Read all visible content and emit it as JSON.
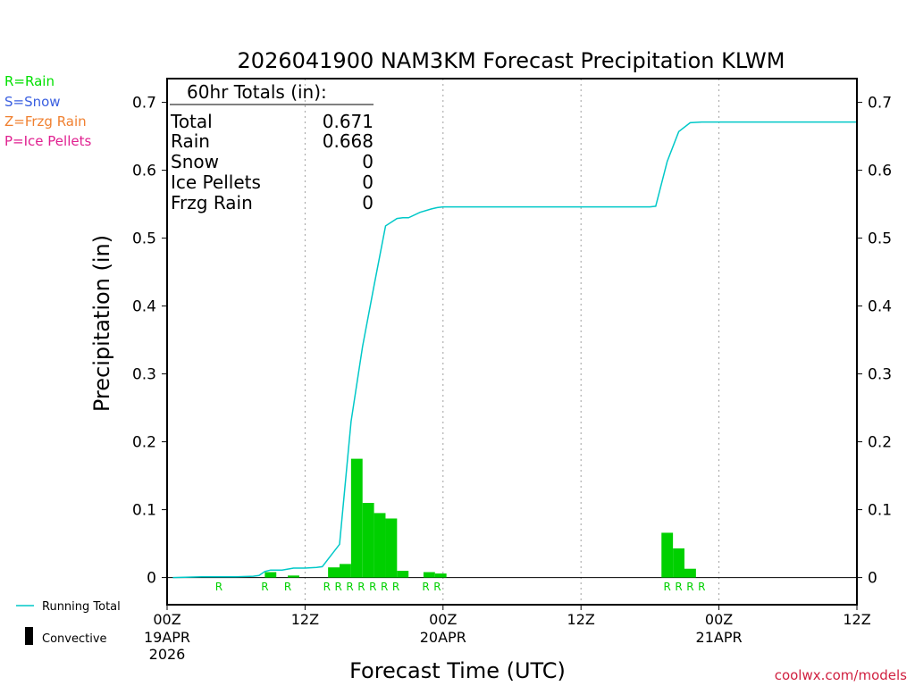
{
  "chart_data": {
    "type": "bar",
    "title": "2026041900 NAM3KM Forecast Precipitation KLWM",
    "xlabel": "Forecast Time (UTC)",
    "ylabel": "Precipitation (in)",
    "ylim": [
      -0.04,
      0.735
    ],
    "xlim_hours": [
      0,
      60
    ],
    "yticks": [
      {
        "v": 0.0,
        "label": "0"
      },
      {
        "v": 0.1,
        "label": "0.1"
      },
      {
        "v": 0.2,
        "label": "0.2"
      },
      {
        "v": 0.3,
        "label": "0.3"
      },
      {
        "v": 0.4,
        "label": "0.4"
      },
      {
        "v": 0.5,
        "label": "0.5"
      },
      {
        "v": 0.6,
        "label": "0.6"
      },
      {
        "v": 0.7,
        "label": "0.7"
      }
    ],
    "xticks": [
      {
        "h": 0,
        "label": "00Z",
        "sub": [
          "19APR",
          "2026"
        ]
      },
      {
        "h": 12,
        "label": "12Z",
        "sub": []
      },
      {
        "h": 24,
        "label": "00Z",
        "sub": [
          "20APR"
        ]
      },
      {
        "h": 36,
        "label": "12Z",
        "sub": []
      },
      {
        "h": 48,
        "label": "00Z",
        "sub": [
          "21APR"
        ]
      },
      {
        "h": 60,
        "label": "12Z",
        "sub": []
      }
    ],
    "gridlines_hours": [
      12,
      24,
      36,
      48
    ],
    "totals_box": {
      "heading": "60hr Totals (in):",
      "rows": [
        {
          "label": "Total",
          "value": "0.671"
        },
        {
          "label": "Rain",
          "value": "0.668"
        },
        {
          "label": "Snow",
          "value": "0"
        },
        {
          "label": "Ice Pellets",
          "value": "0"
        },
        {
          "label": "Frzg Rain",
          "value": "0"
        }
      ]
    },
    "legend_types": [
      {
        "text": "R=Rain",
        "color": "#00e000"
      },
      {
        "text": "S=Snow",
        "color": "#3a5fe0"
      },
      {
        "text": "Z=Frzg Rain",
        "color": "#f08030"
      },
      {
        "text": "P=Ice Pellets",
        "color": "#e02090"
      }
    ],
    "legend_bottom": [
      {
        "text": "Running Total",
        "kind": "line",
        "color": "#00c8c8"
      },
      {
        "text": "Convective",
        "kind": "block",
        "color": "#000000"
      }
    ],
    "bars": [
      {
        "start": 8.5,
        "end": 9.5,
        "value": 0.008,
        "type": "R"
      },
      {
        "start": 10.5,
        "end": 11.5,
        "value": 0.003,
        "type": "R"
      },
      {
        "start": 14.0,
        "end": 15.0,
        "value": 0.015,
        "type": "R"
      },
      {
        "start": 15.0,
        "end": 16.0,
        "value": 0.02,
        "type": "R"
      },
      {
        "start": 16.0,
        "end": 17.0,
        "value": 0.175,
        "type": "R"
      },
      {
        "start": 17.0,
        "end": 18.0,
        "value": 0.11,
        "type": "R"
      },
      {
        "start": 18.0,
        "end": 19.0,
        "value": 0.095,
        "type": "R"
      },
      {
        "start": 19.0,
        "end": 20.0,
        "value": 0.087,
        "type": "R"
      },
      {
        "start": 20.0,
        "end": 21.0,
        "value": 0.01,
        "type": "R"
      },
      {
        "start": 22.3,
        "end": 23.3,
        "value": 0.008,
        "type": "R"
      },
      {
        "start": 23.3,
        "end": 24.3,
        "value": 0.006,
        "type": "R"
      },
      {
        "start": 43.0,
        "end": 44.0,
        "value": 0.066,
        "type": "R"
      },
      {
        "start": 44.0,
        "end": 45.0,
        "value": 0.043,
        "type": "R"
      },
      {
        "start": 45.0,
        "end": 46.0,
        "value": 0.013,
        "type": "R"
      }
    ],
    "type_markers": [
      {
        "h": 4.5,
        "label": "R"
      },
      {
        "h": 8.5,
        "label": "R"
      },
      {
        "h": 10.5,
        "label": "R"
      },
      {
        "h": 13.9,
        "label": "R"
      },
      {
        "h": 14.9,
        "label": "R"
      },
      {
        "h": 15.9,
        "label": "R"
      },
      {
        "h": 16.9,
        "label": "R"
      },
      {
        "h": 17.9,
        "label": "R"
      },
      {
        "h": 18.9,
        "label": "R"
      },
      {
        "h": 19.9,
        "label": "R"
      },
      {
        "h": 22.5,
        "label": "R"
      },
      {
        "h": 23.5,
        "label": "R"
      },
      {
        "h": 43.5,
        "label": "R"
      },
      {
        "h": 44.5,
        "label": "R"
      },
      {
        "h": 45.5,
        "label": "R"
      },
      {
        "h": 46.5,
        "label": "R"
      }
    ],
    "running_total": [
      [
        0.5,
        0.0
      ],
      [
        3,
        0.001
      ],
      [
        6,
        0.001
      ],
      [
        7.5,
        0.002
      ],
      [
        8,
        0.003
      ],
      [
        8.5,
        0.009
      ],
      [
        9,
        0.011
      ],
      [
        10,
        0.011
      ],
      [
        11,
        0.014
      ],
      [
        12,
        0.014
      ],
      [
        13,
        0.015
      ],
      [
        13.5,
        0.016
      ],
      [
        14,
        0.027
      ],
      [
        15,
        0.049
      ],
      [
        16,
        0.23
      ],
      [
        17,
        0.34
      ],
      [
        18,
        0.43
      ],
      [
        19,
        0.518
      ],
      [
        20,
        0.529
      ],
      [
        20.5,
        0.53
      ],
      [
        21,
        0.53
      ],
      [
        22,
        0.538
      ],
      [
        23,
        0.543
      ],
      [
        23.5,
        0.545
      ],
      [
        24,
        0.546
      ],
      [
        30,
        0.546
      ],
      [
        36,
        0.546
      ],
      [
        42,
        0.546
      ],
      [
        42.5,
        0.547
      ],
      [
        43.5,
        0.613
      ],
      [
        44.5,
        0.657
      ],
      [
        45.5,
        0.67
      ],
      [
        46.5,
        0.671
      ],
      [
        60,
        0.671
      ]
    ],
    "colors": {
      "bar": "#00d000",
      "rain_marker": "#00d000",
      "running_total": "#00c8c8",
      "grid": "#a0a0a0",
      "credit": "#d02040"
    },
    "credit": "coolwx.com/models"
  }
}
